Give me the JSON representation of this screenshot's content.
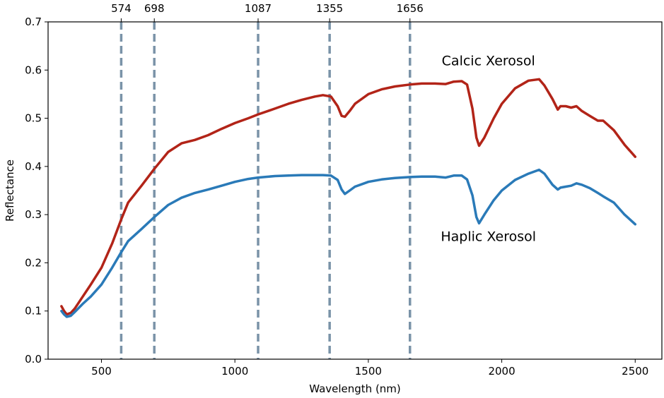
{
  "chart_data": {
    "type": "line",
    "xlabel": "Wavelength (nm)",
    "ylabel": "Reflectance",
    "xlim": [
      300,
      2600
    ],
    "ylim": [
      0.0,
      0.7
    ],
    "xticks": [
      500,
      1000,
      1500,
      2000,
      2500
    ],
    "xtick_labels": [
      "500",
      "1000",
      "1500",
      "2000",
      "2500"
    ],
    "yticks": [
      0.0,
      0.1,
      0.2,
      0.3,
      0.4,
      0.5,
      0.6,
      0.7
    ],
    "ytick_labels": [
      "0.0",
      "0.1",
      "0.2",
      "0.3",
      "0.4",
      "0.5",
      "0.6",
      "0.7"
    ],
    "grid": false,
    "vertical_lines": [
      {
        "x": 574,
        "label": "574"
      },
      {
        "x": 698,
        "label": "698"
      },
      {
        "x": 1087,
        "label": "1087"
      },
      {
        "x": 1355,
        "label": "1355"
      },
      {
        "x": 1656,
        "label": "1656"
      }
    ],
    "series": [
      {
        "color": "#b22418",
        "x": [
          350,
          360,
          370,
          385,
          400,
          430,
          460,
          500,
          540,
          574,
          600,
          650,
          698,
          750,
          800,
          850,
          900,
          950,
          1000,
          1050,
          1087,
          1150,
          1200,
          1250,
          1300,
          1330,
          1360,
          1385,
          1400,
          1412,
          1430,
          1450,
          1500,
          1550,
          1600,
          1656,
          1700,
          1750,
          1790,
          1820,
          1850,
          1870,
          1890,
          1905,
          1915,
          1935,
          1970,
          2000,
          2050,
          2100,
          2140,
          2160,
          2190,
          2210,
          2220,
          2240,
          2260,
          2280,
          2300,
          2330,
          2360,
          2380,
          2420,
          2460,
          2500
        ],
        "values": [
          0.11,
          0.1,
          0.093,
          0.096,
          0.105,
          0.13,
          0.155,
          0.19,
          0.24,
          0.29,
          0.325,
          0.36,
          0.395,
          0.43,
          0.448,
          0.455,
          0.465,
          0.478,
          0.49,
          0.5,
          0.508,
          0.52,
          0.53,
          0.538,
          0.545,
          0.548,
          0.545,
          0.525,
          0.505,
          0.503,
          0.515,
          0.53,
          0.55,
          0.56,
          0.566,
          0.57,
          0.572,
          0.572,
          0.571,
          0.576,
          0.577,
          0.57,
          0.52,
          0.46,
          0.443,
          0.46,
          0.5,
          0.53,
          0.562,
          0.578,
          0.581,
          0.568,
          0.54,
          0.518,
          0.525,
          0.525,
          0.522,
          0.525,
          0.515,
          0.505,
          0.495,
          0.495,
          0.475,
          0.445,
          0.42
        ],
        "annotation": "Calcic Xerosol"
      },
      {
        "color": "#2a7ab8",
        "x": [
          350,
          360,
          370,
          385,
          400,
          430,
          460,
          500,
          540,
          574,
          600,
          650,
          698,
          750,
          800,
          850,
          900,
          950,
          1000,
          1050,
          1087,
          1150,
          1200,
          1250,
          1300,
          1330,
          1360,
          1385,
          1400,
          1412,
          1430,
          1450,
          1500,
          1550,
          1600,
          1656,
          1700,
          1750,
          1790,
          1820,
          1850,
          1870,
          1890,
          1905,
          1915,
          1935,
          1970,
          2000,
          2050,
          2100,
          2140,
          2160,
          2190,
          2210,
          2220,
          2240,
          2260,
          2280,
          2300,
          2330,
          2360,
          2380,
          2420,
          2460,
          2500
        ],
        "values": [
          0.1,
          0.093,
          0.088,
          0.09,
          0.098,
          0.115,
          0.13,
          0.155,
          0.19,
          0.222,
          0.245,
          0.27,
          0.295,
          0.32,
          0.335,
          0.345,
          0.352,
          0.36,
          0.368,
          0.374,
          0.377,
          0.38,
          0.381,
          0.382,
          0.382,
          0.382,
          0.381,
          0.372,
          0.352,
          0.343,
          0.35,
          0.358,
          0.368,
          0.373,
          0.376,
          0.378,
          0.379,
          0.379,
          0.377,
          0.381,
          0.381,
          0.373,
          0.34,
          0.295,
          0.282,
          0.3,
          0.33,
          0.35,
          0.372,
          0.385,
          0.393,
          0.385,
          0.362,
          0.352,
          0.356,
          0.358,
          0.36,
          0.365,
          0.362,
          0.355,
          0.345,
          0.338,
          0.325,
          0.3,
          0.28
        ],
        "annotation": "Haplic Xerosol"
      }
    ],
    "annotations": [
      {
        "text": "Calcic Xerosol",
        "x": 1950,
        "y": 0.61
      },
      {
        "text": "Haplic Xerosol",
        "x": 1950,
        "y": 0.245
      }
    ]
  }
}
